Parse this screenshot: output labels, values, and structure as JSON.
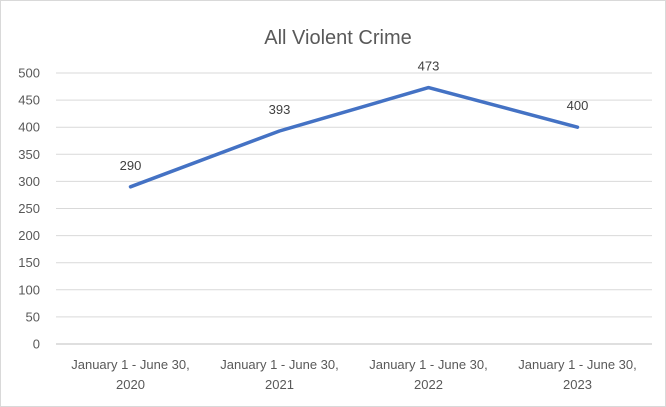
{
  "chart_data": {
    "type": "line",
    "title": "All Violent Crime",
    "xlabel": "",
    "ylabel": "",
    "categories": [
      [
        "January 1 - June 30,",
        "2020"
      ],
      [
        "January 1 - June 30,",
        "2021"
      ],
      [
        "January 1 - June 30,",
        "2022"
      ],
      [
        "January 1 - June 30,",
        "2023"
      ]
    ],
    "series": [
      {
        "values": [
          290,
          393,
          473,
          400
        ],
        "color": "#4472c4"
      }
    ],
    "data_labels": [
      "290",
      "393",
      "473",
      "400"
    ],
    "yticks": [
      0,
      50,
      100,
      150,
      200,
      250,
      300,
      350,
      400,
      450,
      500
    ],
    "ylim": [
      0,
      500
    ],
    "grid": true,
    "legend": "none"
  }
}
